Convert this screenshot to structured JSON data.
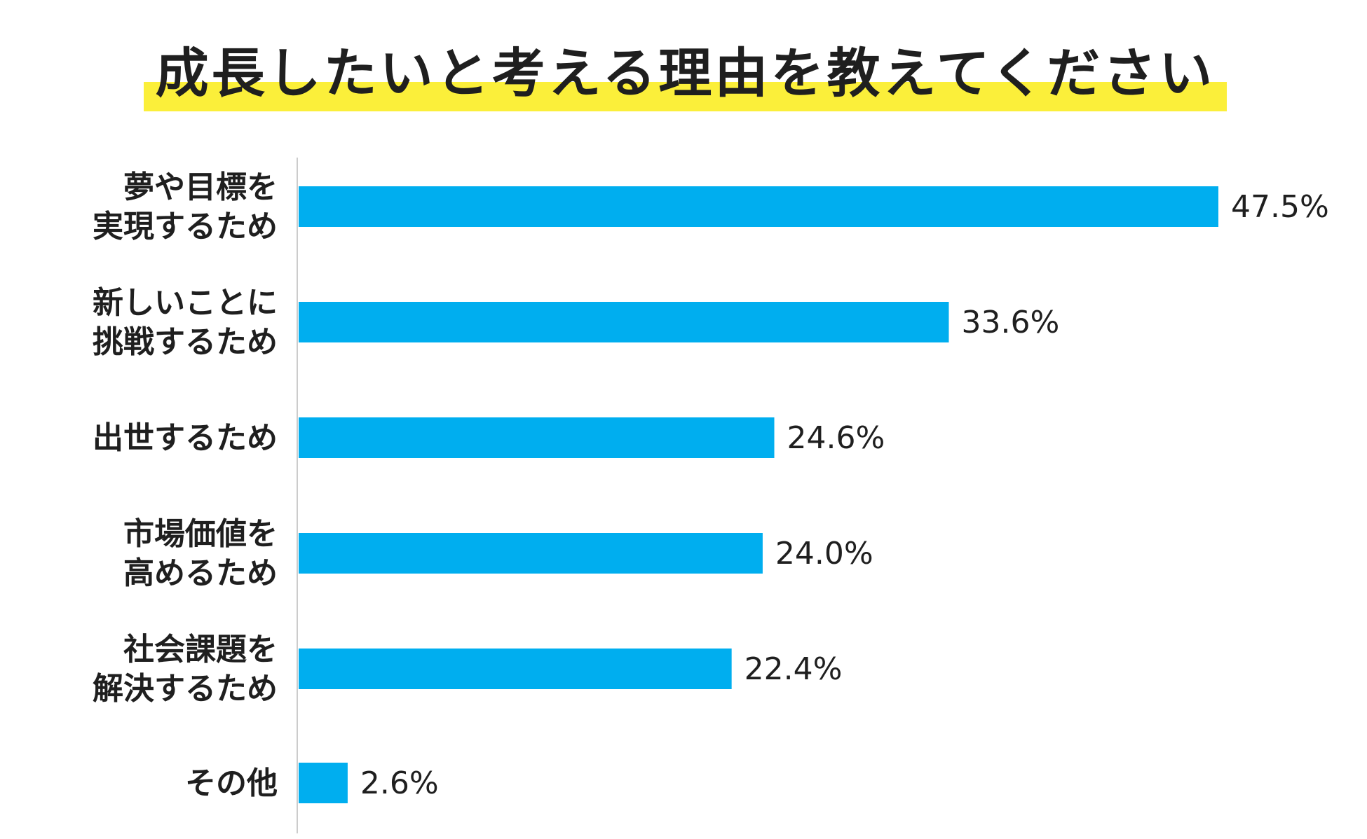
{
  "title": "成長したいと考える理由を教えてください",
  "colors": {
    "bar": "#00aeef",
    "highlight": "#fbef3a",
    "text": "#1f1f1f",
    "axis": "#cccccc"
  },
  "chart_data": {
    "type": "bar",
    "orientation": "horizontal",
    "title": "成長したいと考える理由を教えてください",
    "categories": [
      [
        "夢や目標を",
        "実現するため"
      ],
      [
        "新しいことに",
        "挑戦するため"
      ],
      [
        "出世するため"
      ],
      [
        "市場価値を",
        "高めるため"
      ],
      [
        "社会課題を",
        "解決するため"
      ],
      [
        "その他"
      ]
    ],
    "values": [
      47.5,
      33.6,
      24.6,
      24.0,
      22.4,
      2.6
    ],
    "value_labels": [
      "47.5%",
      "33.6%",
      "24.6%",
      "24.0%",
      "22.4%",
      "2.6%"
    ],
    "unit": "%",
    "xlim": [
      0,
      47.5
    ],
    "grid": false,
    "legend": "none"
  }
}
